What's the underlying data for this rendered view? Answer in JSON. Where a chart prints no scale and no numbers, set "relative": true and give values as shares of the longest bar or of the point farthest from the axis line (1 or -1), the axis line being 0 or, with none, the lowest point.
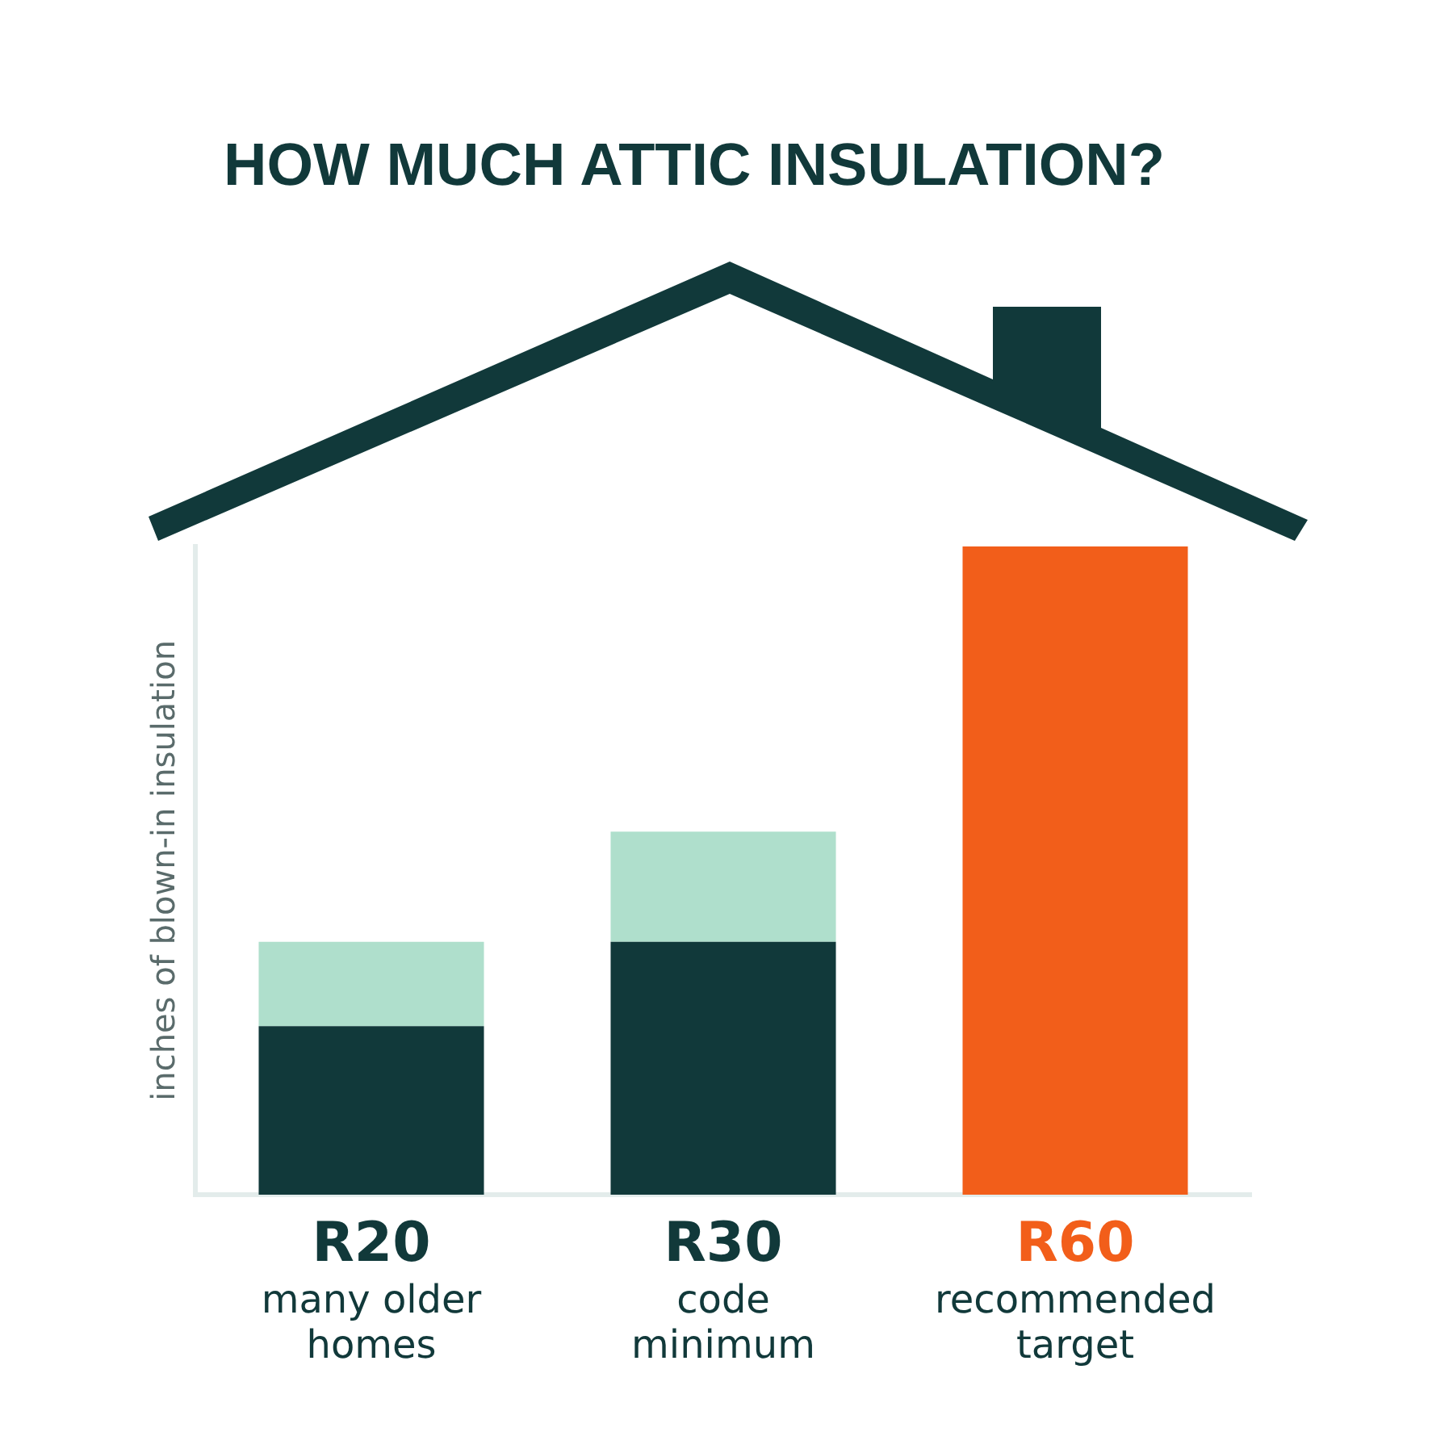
{
  "chart_data": {
    "type": "bar",
    "title": "HOW MUCH ATTIC INSULATION?",
    "ylabel": "inches of blown-in insulation",
    "relative": true,
    "stacked": true,
    "grid": false,
    "legend": false,
    "categories": [
      "R20",
      "R30",
      "R60"
    ],
    "series": [
      {
        "colors": [
          "#11393a",
          "#11393a",
          "#f25e1a"
        ],
        "values": [
          0.26,
          0.39,
          1
        ]
      },
      {
        "color": "#afdfcc",
        "values": [
          0.13,
          0.17,
          null
        ]
      }
    ],
    "annotations": [
      "many older homes",
      "code minimum",
      "recommended target"
    ]
  }
}
